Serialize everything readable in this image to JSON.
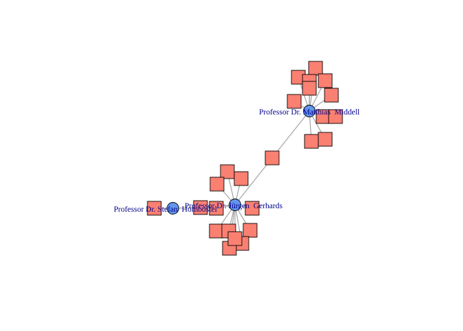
{
  "colors": {
    "edge": "#a9a9a9",
    "document_node": "#fa8072",
    "person_node": "#6495ed",
    "label": "#00008b"
  },
  "people": [
    {
      "id": "middell",
      "label": "Professor Dr. Matthias  Middell"
    },
    {
      "id": "gerhards",
      "label": "Professor Dr. Jürgen  Gerhards"
    },
    {
      "id": "hornbostel",
      "label": "Professor Dr. Stefan  Hornbostel"
    }
  ],
  "documents": [
    {
      "id": "d1",
      "links": [
        "middell"
      ]
    },
    {
      "id": "d2",
      "links": [
        "middell"
      ]
    },
    {
      "id": "d3",
      "links": [
        "middell"
      ]
    },
    {
      "id": "d4",
      "links": [
        "middell"
      ]
    },
    {
      "id": "d5",
      "links": [
        "middell"
      ]
    },
    {
      "id": "d6",
      "links": [
        "middell"
      ]
    },
    {
      "id": "d7",
      "links": [
        "middell"
      ]
    },
    {
      "id": "d8",
      "links": [
        "middell"
      ]
    },
    {
      "id": "d9",
      "links": [
        "middell"
      ]
    },
    {
      "id": "d10",
      "links": [
        "middell"
      ]
    },
    {
      "id": "d11",
      "links": [
        "middell"
      ]
    },
    {
      "id": "d12",
      "links": [
        "middell",
        "gerhards"
      ]
    },
    {
      "id": "d13",
      "links": [
        "gerhards"
      ]
    },
    {
      "id": "d14",
      "links": [
        "gerhards"
      ]
    },
    {
      "id": "d15",
      "links": [
        "gerhards"
      ]
    },
    {
      "id": "d16",
      "links": [
        "gerhards"
      ]
    },
    {
      "id": "d17",
      "links": [
        "gerhards",
        "hornbostel"
      ]
    },
    {
      "id": "d18",
      "links": [
        "gerhards"
      ]
    },
    {
      "id": "d19",
      "links": [
        "gerhards"
      ]
    },
    {
      "id": "d20",
      "links": [
        "gerhards"
      ]
    },
    {
      "id": "d21",
      "links": [
        "gerhards"
      ]
    },
    {
      "id": "d22",
      "links": [
        "gerhards"
      ]
    },
    {
      "id": "d23",
      "links": [
        "gerhards"
      ]
    },
    {
      "id": "d24",
      "links": [
        "gerhards"
      ]
    },
    {
      "id": "d25",
      "links": [
        "hornbostel"
      ]
    }
  ]
}
